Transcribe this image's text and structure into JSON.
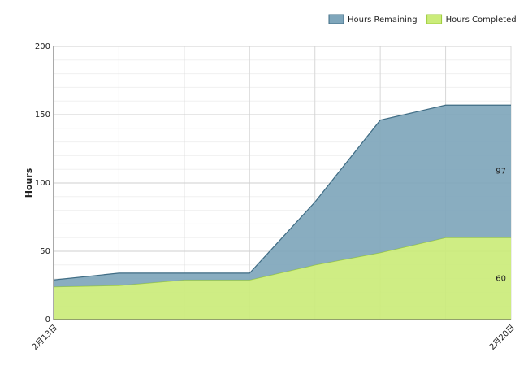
{
  "chart_data": {
    "type": "area",
    "y_label": "Hours",
    "categories": [
      "2月13日",
      null,
      null,
      null,
      null,
      null,
      null,
      "2月20日"
    ],
    "series": [
      {
        "name": "Hours Remaining",
        "color": "#7fa6bb",
        "line_color": "#3f6c84",
        "values": [
          5,
          9,
          5,
          5,
          46,
          97,
          97,
          97
        ]
      },
      {
        "name": "Hours Completed",
        "color": "#cbec7a",
        "line_color": "#9ccb3c",
        "values": [
          24,
          25,
          29,
          29,
          40,
          49,
          60,
          60
        ]
      }
    ],
    "stacked": true,
    "ylim": [
      0,
      200
    ],
    "yticks": [
      0,
      50,
      100,
      150,
      200
    ],
    "minor_yticks": [
      10,
      20,
      30,
      40,
      60,
      70,
      80,
      90,
      110,
      120,
      130,
      140,
      160,
      170,
      180,
      190
    ],
    "grid": true,
    "legend": "top-right"
  }
}
